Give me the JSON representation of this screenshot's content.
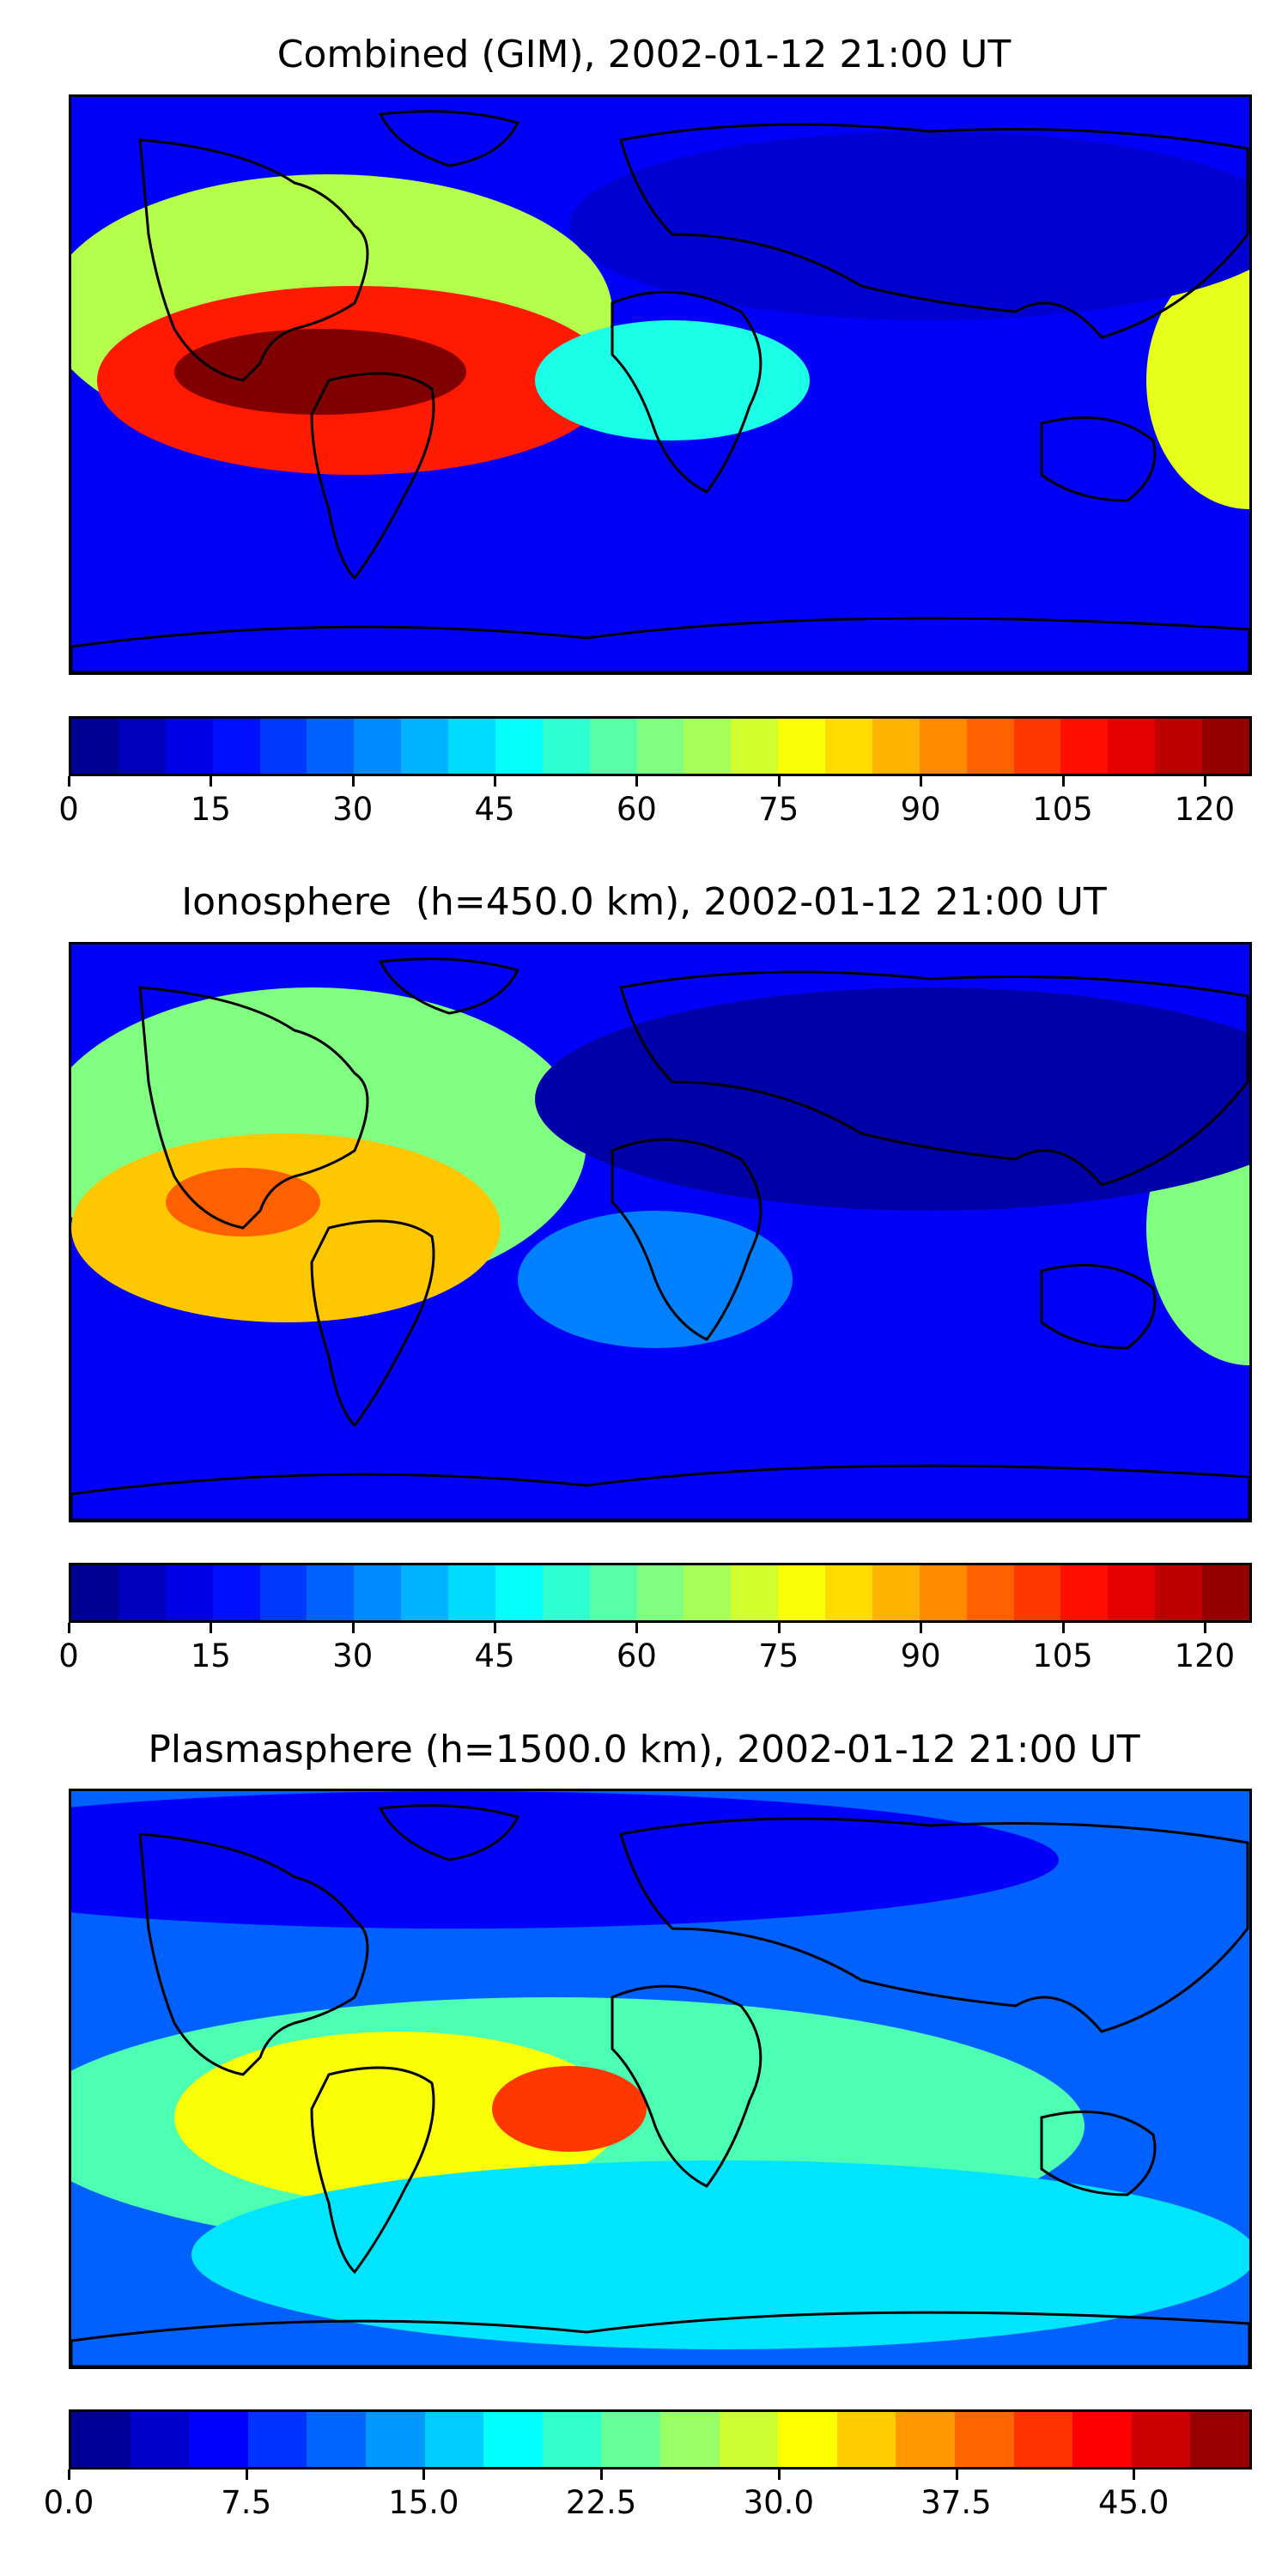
{
  "panels": [
    {
      "title": "Combined (GIM), 2002-01-12 21:00 UT",
      "colorbar": {
        "min": 0,
        "max": 125,
        "levels": 25,
        "ticks": [
          "0",
          "15",
          "30",
          "45",
          "60",
          "75",
          "90",
          "105",
          "120"
        ],
        "tick_values": [
          0,
          15,
          30,
          45,
          60,
          75,
          90,
          105,
          120
        ]
      },
      "features": [
        {
          "label": "background",
          "level": 0.12
        },
        {
          "label": "north-america-band",
          "level": 0.55
        },
        {
          "label": "pacific-south-america-maximum",
          "level": 0.85
        },
        {
          "label": "core-maximum",
          "level": 1.0
        },
        {
          "label": "western-pacific-band",
          "level": 0.6
        },
        {
          "label": "africa-band",
          "level": 0.4
        },
        {
          "label": "northern-minimum",
          "level": 0.08
        }
      ]
    },
    {
      "title": "Ionosphere  (h=450.0 km), 2002-01-12 21:00 UT",
      "colorbar": {
        "min": 0,
        "max": 125,
        "levels": 25,
        "ticks": [
          "0",
          "15",
          "30",
          "45",
          "60",
          "75",
          "90",
          "105",
          "120"
        ],
        "tick_values": [
          0,
          15,
          30,
          45,
          60,
          75,
          90,
          105,
          120
        ]
      },
      "features": [
        {
          "label": "background",
          "level": 0.12
        },
        {
          "label": "north-america-band",
          "level": 0.5
        },
        {
          "label": "pacific-south-america-maximum",
          "level": 0.68
        },
        {
          "label": "core-maximum",
          "level": 0.78
        },
        {
          "label": "western-pacific-band",
          "level": 0.5
        },
        {
          "label": "africa-band",
          "level": 0.25
        },
        {
          "label": "northern-minimum",
          "level": 0.04
        }
      ]
    },
    {
      "title": "Plasmasphere (h=1500.0 km), 2002-01-12 21:00 UT",
      "colorbar": {
        "min": 0,
        "max": 50,
        "levels": 20,
        "ticks": [
          "0.0",
          "7.5",
          "15.0",
          "22.5",
          "30.0",
          "37.5",
          "45.0"
        ],
        "tick_values": [
          0,
          7.5,
          15,
          22.5,
          30,
          37.5,
          45
        ]
      },
      "features": [
        {
          "label": "background",
          "level": 0.22
        },
        {
          "label": "equatorial-band",
          "level": 0.45
        },
        {
          "label": "tropical-maximum",
          "level": 0.62
        },
        {
          "label": "brazil-maximum",
          "level": 0.82
        },
        {
          "label": "southern-band",
          "level": 0.35
        },
        {
          "label": "northern-minimum",
          "level": 0.12
        }
      ]
    }
  ],
  "colormap": "jet"
}
